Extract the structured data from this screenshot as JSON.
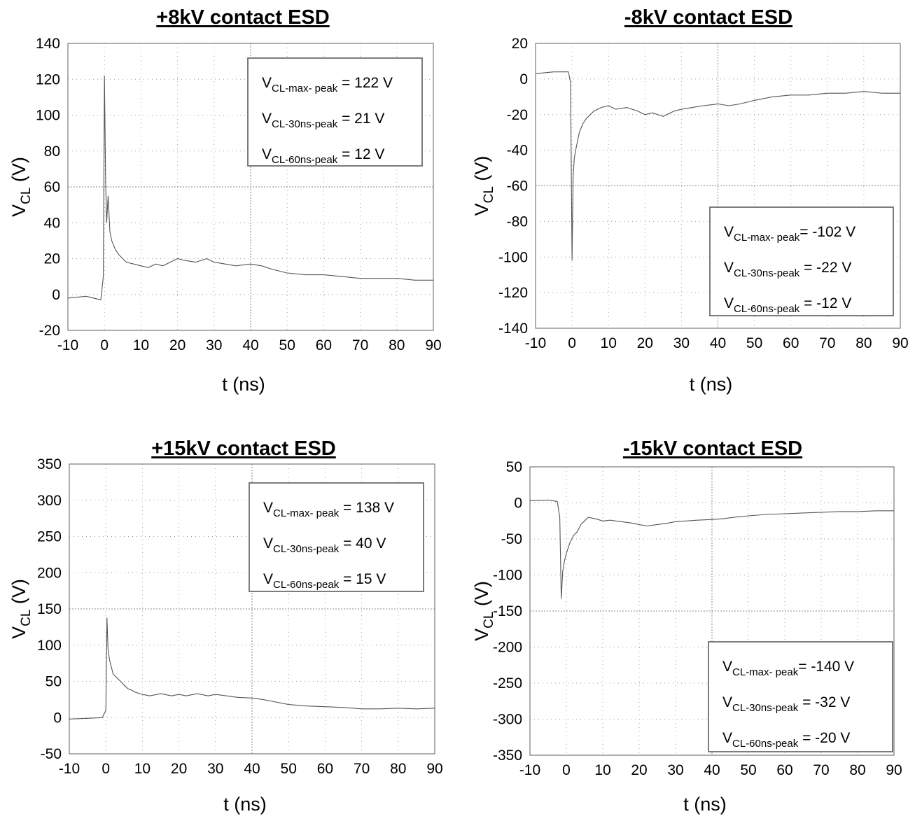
{
  "chart_data": [
    {
      "type": "line",
      "title": "+8kV contact ESD",
      "xlabel": "t (ns)",
      "ylabel": {
        "main": "V",
        "sub": "CL",
        "unit": " (V)"
      },
      "xlim": [
        -10,
        90
      ],
      "ylim": [
        -20,
        140
      ],
      "xticks": [
        -10,
        0,
        10,
        20,
        30,
        40,
        50,
        60,
        70,
        80,
        90
      ],
      "yticks": [
        -20,
        0,
        20,
        40,
        60,
        80,
        100,
        120,
        140
      ],
      "grid": true,
      "annotation": {
        "placement": "top-right",
        "lines": [
          {
            "main": "V",
            "sub": "CL-max- peak",
            "rest": " = 122 V"
          },
          {
            "main": "V",
            "sub": "CL-30ns-peak",
            "rest": " = 21 V"
          },
          {
            "main": "V",
            "sub": "CL-60ns-peak",
            "rest": " = 12 V"
          }
        ]
      },
      "series": [
        {
          "x": [
            -10,
            -5,
            -1,
            -0.3,
            0,
            0.3,
            0.6,
            1,
            1.5,
            2,
            3,
            4,
            5,
            6,
            8,
            10,
            12,
            14,
            16,
            18,
            20,
            22,
            25,
            28,
            30,
            33,
            36,
            40,
            43,
            46,
            50,
            55,
            60,
            65,
            70,
            75,
            80,
            85,
            90
          ],
          "y": [
            -2,
            -1,
            -3,
            10,
            122,
            65,
            40,
            55,
            35,
            30,
            25,
            22,
            20,
            18,
            17,
            16,
            15,
            17,
            16,
            18,
            20,
            19,
            18,
            20,
            18,
            17,
            16,
            17,
            16,
            14,
            12,
            11,
            11,
            10,
            9,
            9,
            9,
            8,
            8
          ]
        }
      ]
    },
    {
      "type": "line",
      "title": "-8kV contact ESD",
      "xlabel": "t (ns)",
      "ylabel": {
        "main": "V",
        "sub": "CL",
        "unit": " (V)"
      },
      "xlim": [
        -10,
        90
      ],
      "ylim": [
        -140,
        20
      ],
      "xticks": [
        -10,
        0,
        10,
        20,
        30,
        40,
        50,
        60,
        70,
        80,
        90
      ],
      "yticks": [
        -140,
        -120,
        -100,
        -80,
        -60,
        -40,
        -20,
        0,
        20
      ],
      "grid": true,
      "annotation": {
        "placement": "bottom-right",
        "lines": [
          {
            "main": "V",
            "sub": "CL-max- peak",
            "rest": "= -102 V"
          },
          {
            "main": "V",
            "sub": "CL-30ns-peak",
            "rest": " = -22 V"
          },
          {
            "main": "V",
            "sub": "CL-60ns-peak",
            "rest": " = -12 V"
          }
        ]
      },
      "series": [
        {
          "x": [
            -10,
            -5,
            -1,
            -0.4,
            0,
            0.3,
            0.6,
            1,
            1.5,
            2,
            3,
            4,
            5,
            6,
            8,
            10,
            12,
            15,
            18,
            20,
            22,
            25,
            28,
            30,
            33,
            36,
            40,
            43,
            46,
            50,
            55,
            60,
            65,
            70,
            75,
            80,
            85,
            90
          ],
          "y": [
            3,
            4,
            4,
            -2,
            -102,
            -55,
            -45,
            -40,
            -35,
            -30,
            -25,
            -22,
            -20,
            -18,
            -16,
            -15,
            -17,
            -16,
            -18,
            -20,
            -19,
            -21,
            -18,
            -17,
            -16,
            -15,
            -14,
            -15,
            -14,
            -12,
            -10,
            -9,
            -9,
            -8,
            -8,
            -7,
            -8,
            -8
          ]
        }
      ]
    },
    {
      "type": "line",
      "title": "+15kV contact ESD",
      "xlabel": "t (ns)",
      "ylabel": {
        "main": "V",
        "sub": "CL",
        "unit": " (V)"
      },
      "xlim": [
        -10,
        90
      ],
      "ylim": [
        -50,
        350
      ],
      "xticks": [
        -10,
        0,
        10,
        20,
        30,
        40,
        50,
        60,
        70,
        80,
        90
      ],
      "yticks": [
        -50,
        0,
        50,
        100,
        150,
        200,
        250,
        300,
        350
      ],
      "grid": true,
      "annotation": {
        "placement": "top-right",
        "lines": [
          {
            "main": "V",
            "sub": "CL-max- peak",
            "rest": " = 138 V"
          },
          {
            "main": "V",
            "sub": "CL-30ns-peak",
            "rest": " = 40 V"
          },
          {
            "main": "V",
            "sub": "CL-60ns-peak",
            "rest": " = 15 V"
          }
        ]
      },
      "series": [
        {
          "x": [
            -10,
            -5,
            -1,
            0,
            0.3,
            0.6,
            1,
            1.5,
            2,
            3,
            4,
            5,
            6,
            7,
            8,
            10,
            12,
            15,
            18,
            20,
            22,
            25,
            28,
            30,
            33,
            36,
            40,
            43,
            46,
            50,
            55,
            60,
            65,
            70,
            75,
            80,
            85,
            90
          ],
          "y": [
            -2,
            -1,
            0,
            10,
            138,
            95,
            80,
            70,
            60,
            55,
            50,
            45,
            40,
            38,
            35,
            32,
            30,
            33,
            30,
            32,
            30,
            33,
            30,
            32,
            30,
            28,
            27,
            25,
            22,
            18,
            16,
            15,
            14,
            12,
            12,
            13,
            12,
            13
          ]
        }
      ]
    },
    {
      "type": "line",
      "title": "-15kV contact ESD",
      "xlabel": "t (ns)",
      "ylabel": {
        "main": "V",
        "sub": "CL",
        "unit": " (V)"
      },
      "xlim": [
        -10,
        90
      ],
      "ylim": [
        -350,
        50
      ],
      "xticks": [
        -10,
        0,
        10,
        20,
        30,
        40,
        50,
        60,
        70,
        80,
        90
      ],
      "yticks": [
        -350,
        -300,
        -250,
        -200,
        -150,
        -100,
        -50,
        0,
        50
      ],
      "grid": true,
      "annotation": {
        "placement": "bottom-right",
        "lines": [
          {
            "main": "V",
            "sub": "CL-max- peak",
            "rest": "= -140 V"
          },
          {
            "main": "V",
            "sub": "CL-30ns-peak",
            "rest": " = -32 V"
          },
          {
            "main": "V",
            "sub": "CL-60ns-peak",
            "rest": " = -20 V"
          }
        ]
      },
      "series": [
        {
          "x": [
            -10,
            -5,
            -2.5,
            -1.8,
            -1.4,
            -1,
            -0.5,
            0,
            1,
            2,
            3,
            4,
            5,
            6,
            8,
            10,
            12,
            15,
            18,
            20,
            22,
            25,
            28,
            30,
            33,
            36,
            40,
            43,
            46,
            50,
            55,
            60,
            65,
            70,
            75,
            80,
            85,
            90
          ],
          "y": [
            3,
            4,
            2,
            -20,
            -133,
            -95,
            -80,
            -70,
            -55,
            -45,
            -40,
            -30,
            -25,
            -20,
            -22,
            -25,
            -24,
            -26,
            -28,
            -30,
            -32,
            -30,
            -28,
            -26,
            -25,
            -24,
            -23,
            -22,
            -20,
            -18,
            -16,
            -15,
            -14,
            -13,
            -12,
            -12,
            -11,
            -11
          ]
        }
      ]
    }
  ]
}
